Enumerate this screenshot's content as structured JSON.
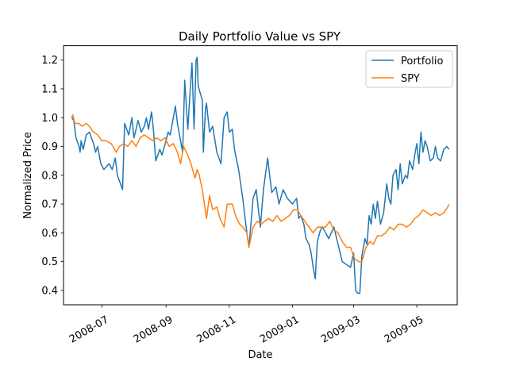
{
  "chart_data": {
    "type": "line",
    "title": "Daily Portfolio Value vs SPY",
    "xlabel": "Date",
    "ylabel": "Normalized Price",
    "x_axis_type": "date",
    "xlim": [
      "2008-05-25",
      "2009-06-09"
    ],
    "ylim": [
      0.35,
      1.25
    ],
    "x_ticks": [
      {
        "date": "2008-07-01",
        "label": "2008-07"
      },
      {
        "date": "2008-09-01",
        "label": "2008-09"
      },
      {
        "date": "2008-11-01",
        "label": "2008-11"
      },
      {
        "date": "2009-01-01",
        "label": "2009-01"
      },
      {
        "date": "2009-03-01",
        "label": "2009-03"
      },
      {
        "date": "2009-05-01",
        "label": "2009-05"
      }
    ],
    "y_ticks": [
      0.4,
      0.5,
      0.6,
      0.7,
      0.8,
      0.9,
      1.0,
      1.1,
      1.2
    ],
    "grid": false,
    "legend_position": "top-right",
    "series": [
      {
        "name": "Portfolio",
        "color": "#1f77b4",
        "points": [
          [
            "2008-06-02",
            1.0
          ],
          [
            "2008-06-04",
            0.99
          ],
          [
            "2008-06-06",
            0.93
          ],
          [
            "2008-06-09",
            0.9
          ],
          [
            "2008-06-10",
            0.88
          ],
          [
            "2008-06-11",
            0.92
          ],
          [
            "2008-06-13",
            0.89
          ],
          [
            "2008-06-16",
            0.94
          ],
          [
            "2008-06-19",
            0.95
          ],
          [
            "2008-06-23",
            0.91
          ],
          [
            "2008-06-25",
            0.88
          ],
          [
            "2008-06-27",
            0.9
          ],
          [
            "2008-06-30",
            0.84
          ],
          [
            "2008-07-03",
            0.82
          ],
          [
            "2008-07-08",
            0.84
          ],
          [
            "2008-07-11",
            0.82
          ],
          [
            "2008-07-14",
            0.86
          ],
          [
            "2008-07-16",
            0.8
          ],
          [
            "2008-07-21",
            0.75
          ],
          [
            "2008-07-23",
            0.98
          ],
          [
            "2008-07-27",
            0.94
          ],
          [
            "2008-07-30",
            1.0
          ],
          [
            "2008-08-01",
            0.93
          ],
          [
            "2008-08-05",
            0.99
          ],
          [
            "2008-08-08",
            0.95
          ],
          [
            "2008-08-11",
            0.97
          ],
          [
            "2008-08-13",
            1.0
          ],
          [
            "2008-08-15",
            0.96
          ],
          [
            "2008-08-18",
            1.02
          ],
          [
            "2008-08-20",
            0.95
          ],
          [
            "2008-08-22",
            0.85
          ],
          [
            "2008-08-26",
            0.89
          ],
          [
            "2008-08-28",
            0.87
          ],
          [
            "2008-09-01",
            0.92
          ],
          [
            "2008-09-03",
            0.95
          ],
          [
            "2008-09-05",
            0.94
          ],
          [
            "2008-09-08",
            1.0
          ],
          [
            "2008-09-10",
            1.04
          ],
          [
            "2008-09-12",
            0.98
          ],
          [
            "2008-09-15",
            0.92
          ],
          [
            "2008-09-17",
            0.88
          ],
          [
            "2008-09-19",
            1.13
          ],
          [
            "2008-09-22",
            0.96
          ],
          [
            "2008-09-24",
            1.08
          ],
          [
            "2008-09-26",
            1.19
          ],
          [
            "2008-09-28",
            0.96
          ],
          [
            "2008-09-30",
            1.2
          ],
          [
            "2008-10-01",
            1.21
          ],
          [
            "2008-10-02",
            1.11
          ],
          [
            "2008-10-06",
            1.06
          ],
          [
            "2008-10-07",
            0.88
          ],
          [
            "2008-10-09",
            1.03
          ],
          [
            "2008-10-10",
            1.05
          ],
          [
            "2008-10-13",
            0.95
          ],
          [
            "2008-10-16",
            0.97
          ],
          [
            "2008-10-20",
            0.88
          ],
          [
            "2008-10-24",
            0.84
          ],
          [
            "2008-10-27",
            1.0
          ],
          [
            "2008-10-30",
            1.02
          ],
          [
            "2008-11-01",
            0.95
          ],
          [
            "2008-11-04",
            0.96
          ],
          [
            "2008-11-06",
            0.89
          ],
          [
            "2008-11-10",
            0.82
          ],
          [
            "2008-11-14",
            0.72
          ],
          [
            "2008-11-18",
            0.6
          ],
          [
            "2008-11-20",
            0.55
          ],
          [
            "2008-11-24",
            0.72
          ],
          [
            "2008-11-27",
            0.75
          ],
          [
            "2008-12-01",
            0.62
          ],
          [
            "2008-12-04",
            0.75
          ],
          [
            "2008-12-08",
            0.86
          ],
          [
            "2008-12-12",
            0.74
          ],
          [
            "2008-12-16",
            0.76
          ],
          [
            "2008-12-19",
            0.7
          ],
          [
            "2008-12-23",
            0.75
          ],
          [
            "2008-12-27",
            0.72
          ],
          [
            "2009-01-01",
            0.7
          ],
          [
            "2009-01-05",
            0.72
          ],
          [
            "2009-01-07",
            0.65
          ],
          [
            "2009-01-09",
            0.66
          ],
          [
            "2009-01-12",
            0.63
          ],
          [
            "2009-01-14",
            0.58
          ],
          [
            "2009-01-17",
            0.56
          ],
          [
            "2009-01-19",
            0.53
          ],
          [
            "2009-01-21",
            0.48
          ],
          [
            "2009-01-23",
            0.44
          ],
          [
            "2009-01-25",
            0.57
          ],
          [
            "2009-01-28",
            0.61
          ],
          [
            "2009-01-30",
            0.62
          ],
          [
            "2009-02-02",
            0.6
          ],
          [
            "2009-02-05",
            0.58
          ],
          [
            "2009-02-10",
            0.62
          ],
          [
            "2009-02-14",
            0.56
          ],
          [
            "2009-02-18",
            0.5
          ],
          [
            "2009-02-22",
            0.49
          ],
          [
            "2009-02-26",
            0.48
          ],
          [
            "2009-03-01",
            0.53
          ],
          [
            "2009-03-03",
            0.4
          ],
          [
            "2009-03-05",
            0.39
          ],
          [
            "2009-03-07",
            0.39
          ],
          [
            "2009-03-09",
            0.52
          ],
          [
            "2009-03-12",
            0.58
          ],
          [
            "2009-03-14",
            0.56
          ],
          [
            "2009-03-16",
            0.66
          ],
          [
            "2009-03-18",
            0.63
          ],
          [
            "2009-03-20",
            0.7
          ],
          [
            "2009-03-22",
            0.65
          ],
          [
            "2009-03-24",
            0.71
          ],
          [
            "2009-03-27",
            0.63
          ],
          [
            "2009-03-30",
            0.67
          ],
          [
            "2009-04-02",
            0.77
          ],
          [
            "2009-04-04",
            0.72
          ],
          [
            "2009-04-06",
            0.7
          ],
          [
            "2009-04-08",
            0.8
          ],
          [
            "2009-04-11",
            0.82
          ],
          [
            "2009-04-13",
            0.75
          ],
          [
            "2009-04-15",
            0.84
          ],
          [
            "2009-04-17",
            0.77
          ],
          [
            "2009-04-20",
            0.8
          ],
          [
            "2009-04-22",
            0.79
          ],
          [
            "2009-04-24",
            0.85
          ],
          [
            "2009-04-27",
            0.82
          ],
          [
            "2009-04-29",
            0.87
          ],
          [
            "2009-05-01",
            0.91
          ],
          [
            "2009-05-03",
            0.84
          ],
          [
            "2009-05-05",
            0.95
          ],
          [
            "2009-05-07",
            0.88
          ],
          [
            "2009-05-09",
            0.92
          ],
          [
            "2009-05-11",
            0.9
          ],
          [
            "2009-05-14",
            0.85
          ],
          [
            "2009-05-17",
            0.86
          ],
          [
            "2009-05-19",
            0.9
          ],
          [
            "2009-05-21",
            0.86
          ],
          [
            "2009-05-24",
            0.85
          ],
          [
            "2009-05-27",
            0.89
          ],
          [
            "2009-05-30",
            0.9
          ],
          [
            "2009-06-01",
            0.89
          ]
        ]
      },
      {
        "name": "SPY",
        "color": "#ff7f0e",
        "points": [
          [
            "2008-06-02",
            1.0
          ],
          [
            "2008-06-03",
            1.01
          ],
          [
            "2008-06-05",
            0.98
          ],
          [
            "2008-06-09",
            0.98
          ],
          [
            "2008-06-12",
            0.97
          ],
          [
            "2008-06-16",
            0.98
          ],
          [
            "2008-06-19",
            0.97
          ],
          [
            "2008-06-23",
            0.95
          ],
          [
            "2008-06-27",
            0.94
          ],
          [
            "2008-07-01",
            0.92
          ],
          [
            "2008-07-05",
            0.92
          ],
          [
            "2008-07-10",
            0.91
          ],
          [
            "2008-07-15",
            0.88
          ],
          [
            "2008-07-18",
            0.9
          ],
          [
            "2008-07-22",
            0.91
          ],
          [
            "2008-07-26",
            0.9
          ],
          [
            "2008-07-30",
            0.92
          ],
          [
            "2008-08-03",
            0.9
          ],
          [
            "2008-08-07",
            0.93
          ],
          [
            "2008-08-11",
            0.94
          ],
          [
            "2008-08-15",
            0.93
          ],
          [
            "2008-08-19",
            0.92
          ],
          [
            "2008-08-23",
            0.93
          ],
          [
            "2008-08-27",
            0.92
          ],
          [
            "2008-08-31",
            0.93
          ],
          [
            "2008-09-04",
            0.9
          ],
          [
            "2008-09-08",
            0.91
          ],
          [
            "2008-09-12",
            0.88
          ],
          [
            "2008-09-15",
            0.84
          ],
          [
            "2008-09-18",
            0.9
          ],
          [
            "2008-09-22",
            0.87
          ],
          [
            "2008-09-25",
            0.84
          ],
          [
            "2008-09-29",
            0.79
          ],
          [
            "2008-10-01",
            0.82
          ],
          [
            "2008-10-03",
            0.8
          ],
          [
            "2008-10-06",
            0.75
          ],
          [
            "2008-10-08",
            0.7
          ],
          [
            "2008-10-10",
            0.65
          ],
          [
            "2008-10-13",
            0.73
          ],
          [
            "2008-10-16",
            0.68
          ],
          [
            "2008-10-20",
            0.69
          ],
          [
            "2008-10-23",
            0.65
          ],
          [
            "2008-10-27",
            0.62
          ],
          [
            "2008-10-30",
            0.7
          ],
          [
            "2008-11-04",
            0.7
          ],
          [
            "2008-11-07",
            0.66
          ],
          [
            "2008-11-11",
            0.63
          ],
          [
            "2008-11-14",
            0.62
          ],
          [
            "2008-11-18",
            0.6
          ],
          [
            "2008-11-20",
            0.55
          ],
          [
            "2008-11-24",
            0.62
          ],
          [
            "2008-11-28",
            0.64
          ],
          [
            "2008-12-02",
            0.63
          ],
          [
            "2008-12-05",
            0.64
          ],
          [
            "2008-12-09",
            0.65
          ],
          [
            "2008-12-13",
            0.64
          ],
          [
            "2008-12-17",
            0.66
          ],
          [
            "2008-12-21",
            0.64
          ],
          [
            "2008-12-25",
            0.65
          ],
          [
            "2008-12-29",
            0.66
          ],
          [
            "2009-01-02",
            0.68
          ],
          [
            "2009-01-06",
            0.68
          ],
          [
            "2009-01-09",
            0.66
          ],
          [
            "2009-01-13",
            0.64
          ],
          [
            "2009-01-17",
            0.62
          ],
          [
            "2009-01-21",
            0.6
          ],
          [
            "2009-01-25",
            0.62
          ],
          [
            "2009-01-29",
            0.62
          ],
          [
            "2009-02-02",
            0.62
          ],
          [
            "2009-02-06",
            0.64
          ],
          [
            "2009-02-10",
            0.61
          ],
          [
            "2009-02-14",
            0.6
          ],
          [
            "2009-02-18",
            0.57
          ],
          [
            "2009-02-22",
            0.55
          ],
          [
            "2009-02-26",
            0.55
          ],
          [
            "2009-03-02",
            0.51
          ],
          [
            "2009-03-06",
            0.5
          ],
          [
            "2009-03-09",
            0.5
          ],
          [
            "2009-03-13",
            0.55
          ],
          [
            "2009-03-17",
            0.57
          ],
          [
            "2009-03-20",
            0.56
          ],
          [
            "2009-03-24",
            0.59
          ],
          [
            "2009-03-28",
            0.59
          ],
          [
            "2009-04-01",
            0.6
          ],
          [
            "2009-04-05",
            0.62
          ],
          [
            "2009-04-09",
            0.61
          ],
          [
            "2009-04-13",
            0.63
          ],
          [
            "2009-04-17",
            0.63
          ],
          [
            "2009-04-21",
            0.62
          ],
          [
            "2009-04-25",
            0.63
          ],
          [
            "2009-04-29",
            0.65
          ],
          [
            "2009-05-03",
            0.66
          ],
          [
            "2009-05-07",
            0.68
          ],
          [
            "2009-05-11",
            0.67
          ],
          [
            "2009-05-15",
            0.66
          ],
          [
            "2009-05-19",
            0.67
          ],
          [
            "2009-05-23",
            0.66
          ],
          [
            "2009-05-27",
            0.67
          ],
          [
            "2009-05-31",
            0.69
          ],
          [
            "2009-06-01",
            0.7
          ]
        ]
      }
    ]
  }
}
